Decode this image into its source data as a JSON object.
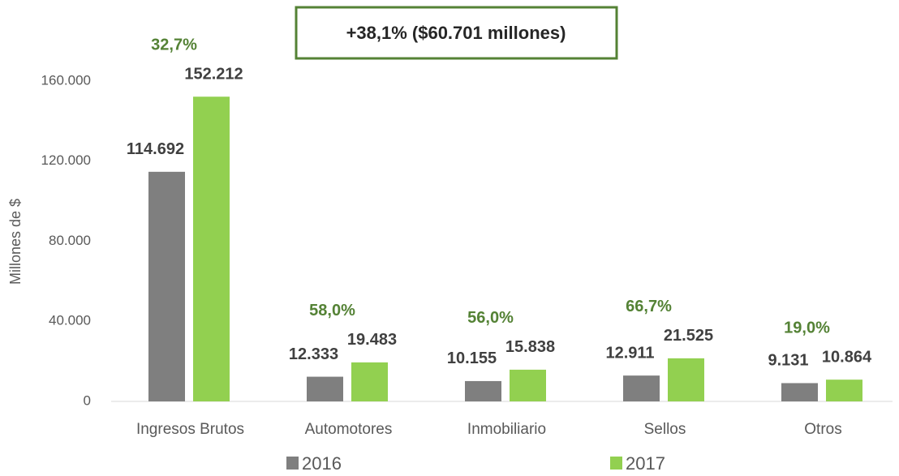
{
  "chart_data": {
    "type": "bar",
    "annotation": "+38,1% ($60.701 millones)",
    "ylabel": "Millones de $",
    "categories": [
      "Ingresos Brutos",
      "Automotores",
      "Inmobiliario",
      "Sellos",
      "Otros"
    ],
    "series": [
      {
        "name": "2016",
        "color": "#7f7f7f",
        "values": [
          114692,
          12333,
          10155,
          12911,
          9131
        ],
        "value_labels": [
          "114.692",
          "12.333",
          "10.155",
          "12.911",
          "9.131"
        ]
      },
      {
        "name": "2017",
        "color": "#92d050",
        "values": [
          152212,
          19483,
          15838,
          21525,
          10864
        ],
        "value_labels": [
          "152.212",
          "19.483",
          "15.838",
          "21.525",
          "10.864"
        ]
      }
    ],
    "growth_labels": [
      "32,7%",
      "58,0%",
      "56,0%",
      "66,7%",
      "19,0%"
    ],
    "growth_color": "#548235",
    "ylim": [
      0,
      160000
    ],
    "yticks": [
      0,
      {
        "value": 40000,
        "label": "40.000"
      },
      {
        "value": 80000,
        "label": "80.000"
      },
      {
        "value": 120000,
        "label": "120.000"
      },
      {
        "value": 160000,
        "label": "160.000"
      }
    ],
    "grid": false,
    "legend": "bottom"
  }
}
